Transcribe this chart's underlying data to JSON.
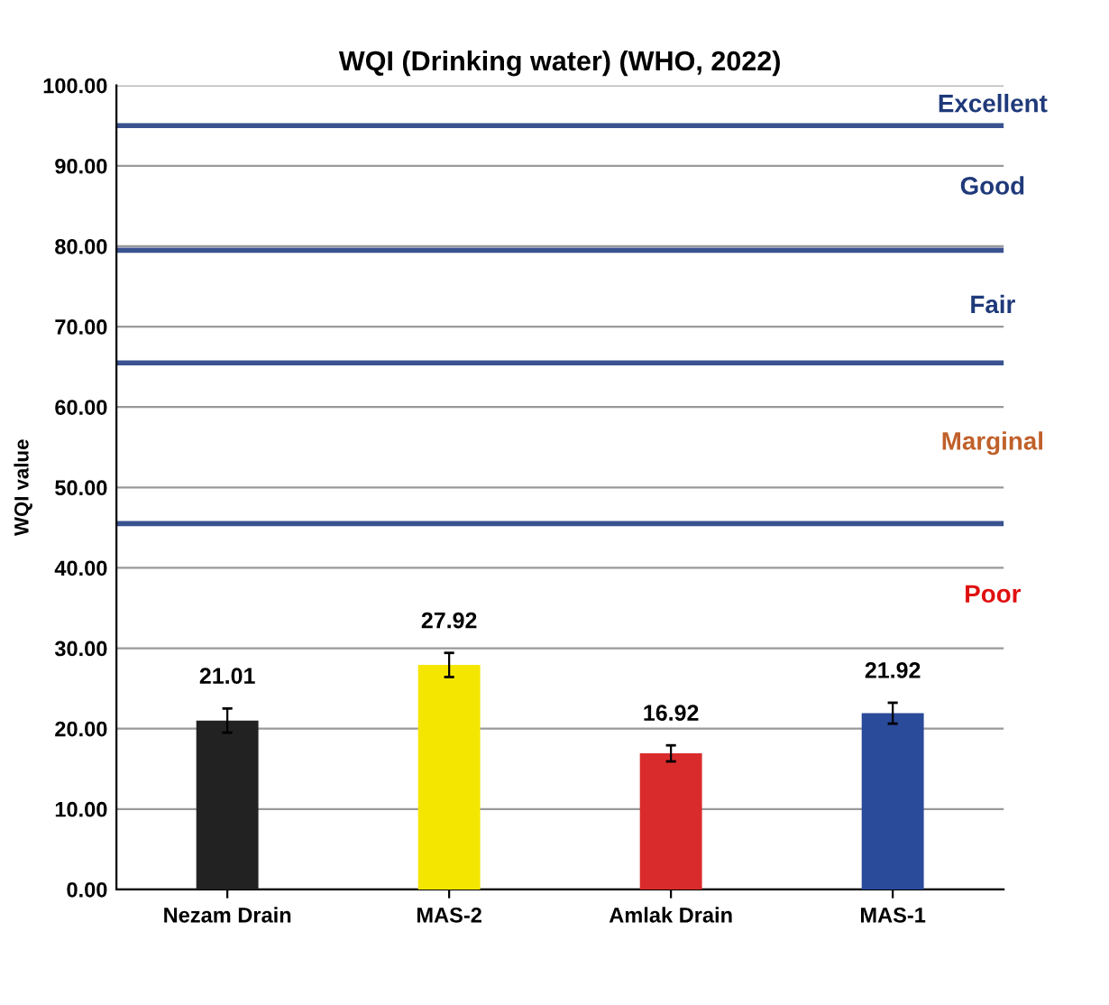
{
  "chart_data": {
    "type": "bar",
    "title": "WQI (Drinking water) (WHO, 2022)",
    "ylabel": "WQI value",
    "categories": [
      "Nezam Drain",
      "MAS-2",
      "Amlak Drain",
      "MAS-1"
    ],
    "values": [
      21.01,
      27.92,
      16.92,
      21.92
    ],
    "colors": [
      "#222222",
      "#f5e600",
      "#d92b2b",
      "#2a4a9a"
    ],
    "errors": [
      1.5,
      1.5,
      1.0,
      1.3
    ],
    "data_labels": true,
    "ylim": [
      0,
      100
    ],
    "yticks": [
      {
        "value": 0,
        "label": "0.00"
      },
      {
        "value": 10,
        "label": "10.00"
      },
      {
        "value": 20,
        "label": "20.00"
      },
      {
        "value": 30,
        "label": "30.00"
      },
      {
        "value": 40,
        "label": "40.00"
      },
      {
        "value": 50,
        "label": "50.00"
      },
      {
        "value": 60,
        "label": "60.00"
      },
      {
        "value": 70,
        "label": "70.00"
      },
      {
        "value": 80,
        "label": "80.00"
      },
      {
        "value": 90,
        "label": "90.00"
      },
      {
        "value": 100,
        "label": "100.00"
      }
    ],
    "grid": "y",
    "ref_lines": [
      {
        "axis": "y",
        "value": 95,
        "color": "#3a5290"
      },
      {
        "axis": "y",
        "value": 79.5,
        "color": "#3a5290"
      },
      {
        "axis": "y",
        "value": 65.5,
        "color": "#3a5290"
      },
      {
        "axis": "y",
        "value": 45.5,
        "color": "#3a5290"
      }
    ],
    "annotations": [
      "Excellent",
      "Good",
      "Fair",
      "Marginal",
      "Poor"
    ]
  }
}
